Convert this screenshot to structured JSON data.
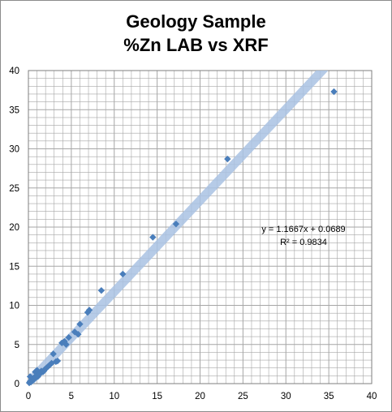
{
  "chart_data": {
    "type": "scatter",
    "title_lines": [
      "Geology Sample",
      "%Zn  LAB vs XRF"
    ],
    "xlim": [
      0,
      40
    ],
    "ylim": [
      0,
      40
    ],
    "x_ticks": [
      0,
      5,
      10,
      15,
      20,
      25,
      30,
      35,
      40
    ],
    "y_ticks": [
      0,
      5,
      10,
      15,
      20,
      25,
      30,
      35,
      40
    ],
    "grid": "on (major every 5, minor every 1)",
    "marker": "diamond",
    "colors": {
      "marker": "#4a7ebb",
      "trendline": "#a9c2e3",
      "grid": "#a6a6a6"
    },
    "series": [
      {
        "points": [
          [
            0.1,
            0.1
          ],
          [
            0.2,
            0.3
          ],
          [
            0.3,
            0.2
          ],
          [
            0.4,
            0.5
          ],
          [
            0.5,
            0.4
          ],
          [
            0.6,
            0.7
          ],
          [
            0.7,
            0.6
          ],
          [
            0.8,
            0.9
          ],
          [
            0.9,
            0.8
          ],
          [
            1.0,
            1.1
          ],
          [
            1.1,
            0.9
          ],
          [
            1.2,
            1.3
          ],
          [
            1.3,
            1.2
          ],
          [
            1.5,
            1.6
          ],
          [
            1.7,
            1.5
          ],
          [
            1.9,
            1.8
          ],
          [
            2.1,
            2.0
          ],
          [
            0.2,
            0.9
          ],
          [
            0.8,
            1.5
          ],
          [
            1.0,
            1.7
          ],
          [
            1.8,
            1.6
          ],
          [
            2.3,
            2.2
          ],
          [
            2.5,
            2.4
          ],
          [
            2.7,
            2.6
          ],
          [
            2.9,
            3.8
          ],
          [
            3.2,
            2.8
          ],
          [
            3.4,
            2.9
          ],
          [
            3.9,
            5.2
          ],
          [
            4.2,
            5.4
          ],
          [
            4.4,
            5.0
          ],
          [
            4.7,
            5.9
          ],
          [
            5.4,
            6.6
          ],
          [
            5.8,
            6.3
          ],
          [
            6.0,
            7.6
          ],
          [
            6.9,
            9.1
          ],
          [
            7.1,
            9.4
          ],
          [
            8.5,
            11.9
          ],
          [
            11.0,
            14.0
          ],
          [
            14.5,
            18.7
          ],
          [
            17.2,
            20.4
          ],
          [
            23.2,
            28.7
          ],
          [
            35.6,
            37.3
          ]
        ]
      }
    ],
    "trendline": {
      "slope": 1.1667,
      "intercept": 0.0689,
      "equation_label": "y = 1.1667x + 0.0689",
      "r2_label": "R² = 0.9834"
    }
  }
}
